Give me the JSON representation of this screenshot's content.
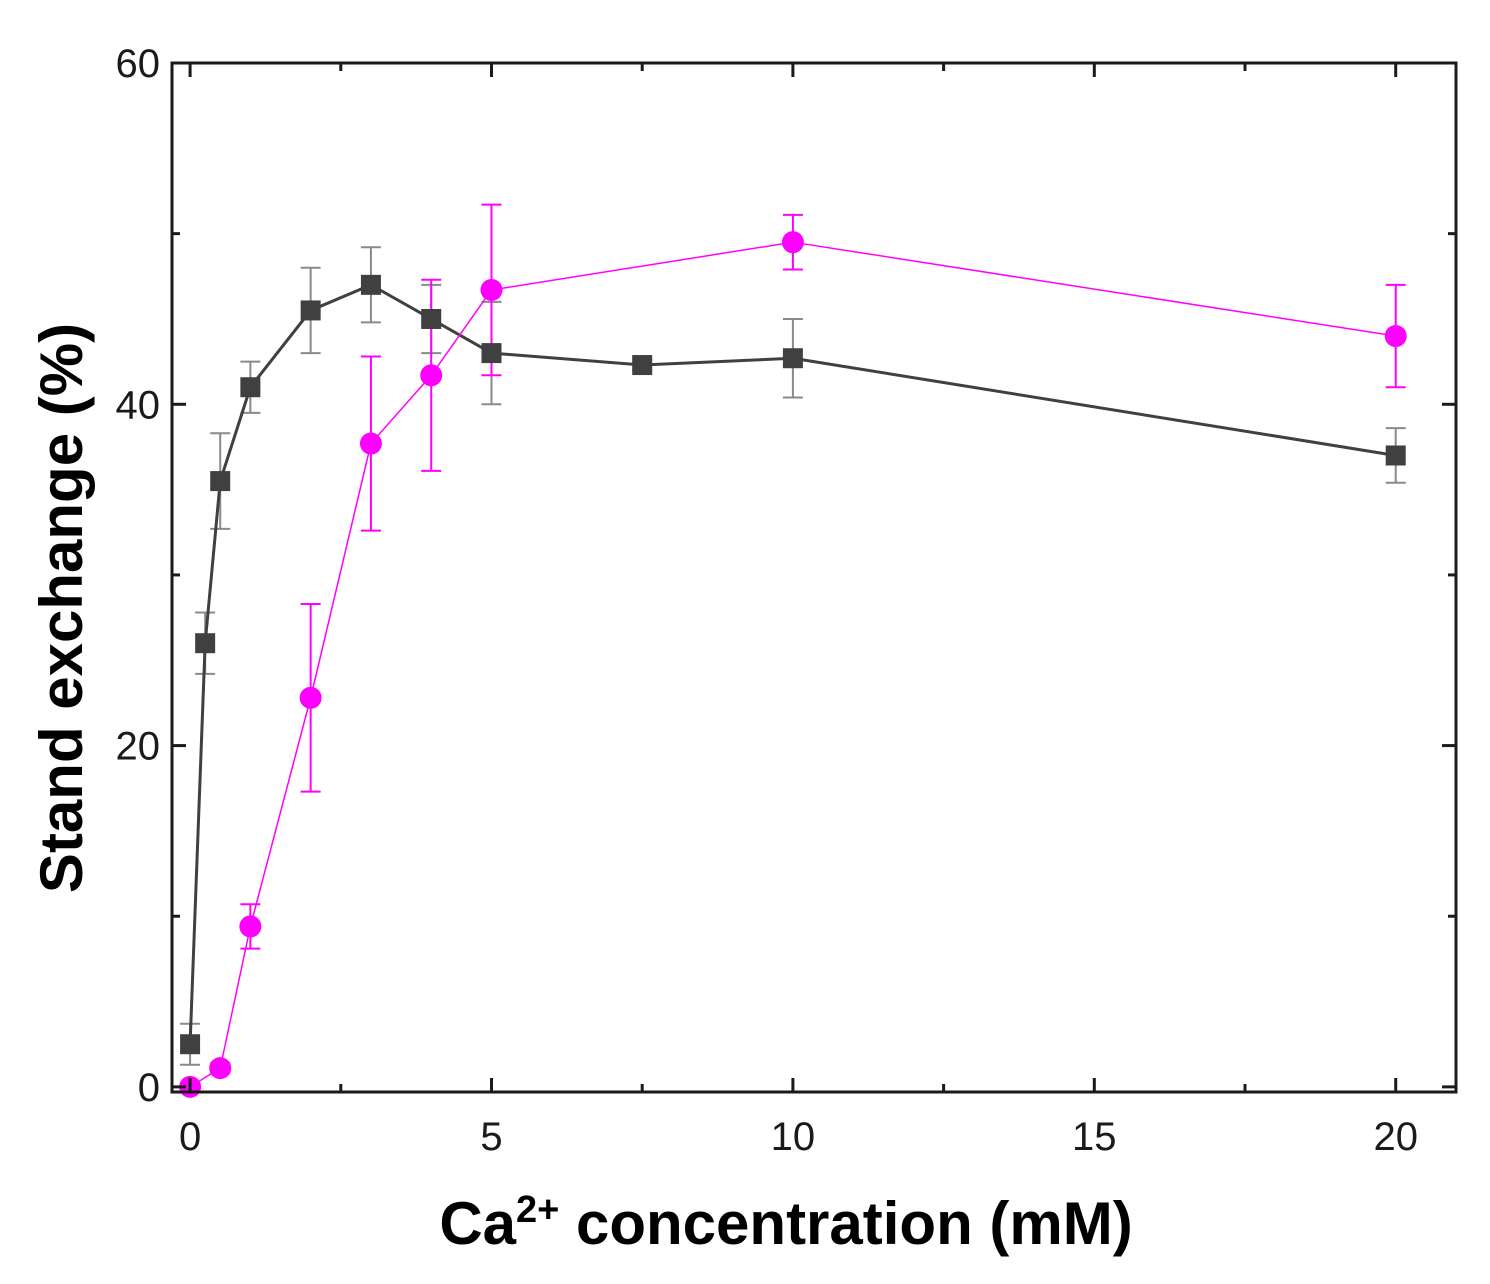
{
  "chart_data": {
    "type": "line",
    "title": "",
    "xlabel": {
      "prefix": "Ca",
      "superscript": "2+",
      "suffix": " concentration (mM)"
    },
    "ylabel": "Stand exchange (%)",
    "xlim": [
      -0.3,
      21
    ],
    "ylim": [
      -0.3,
      60
    ],
    "xticks": [
      0,
      5,
      10,
      15,
      20
    ],
    "yticks": [
      0,
      20,
      40,
      60
    ],
    "xticks_minor": [
      2.5,
      7.5,
      12.5,
      17.5
    ],
    "yticks_minor": [
      10,
      30,
      50
    ],
    "grid": false,
    "legend": "none",
    "series": [
      {
        "name": "black squares",
        "marker": "square",
        "color": "#404040",
        "x": [
          0,
          0.25,
          0.5,
          1,
          2,
          3,
          4,
          5,
          7.5,
          10,
          20
        ],
        "y": [
          2.5,
          26,
          35.5,
          41,
          45.5,
          47,
          45,
          43,
          42.3,
          42.7,
          37
        ],
        "err": [
          1.2,
          1.8,
          2.8,
          1.5,
          2.5,
          2.2,
          2.0,
          3.0,
          0.3,
          2.3,
          1.6
        ]
      },
      {
        "name": "magenta circles",
        "marker": "circle",
        "color": "#ff00ff",
        "x": [
          0,
          0.5,
          1,
          2,
          3,
          4,
          5,
          10,
          20
        ],
        "y": [
          0,
          1.1,
          9.4,
          22.8,
          37.7,
          41.7,
          46.7,
          49.5,
          44
        ],
        "err": [
          0.2,
          0.3,
          1.3,
          5.5,
          5.1,
          5.6,
          5.0,
          1.6,
          3.0
        ]
      }
    ]
  }
}
